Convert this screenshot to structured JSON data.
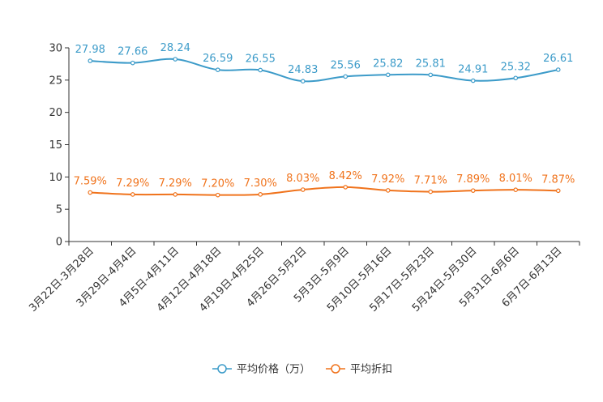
{
  "chart_data": {
    "type": "line",
    "title": "",
    "xlabel": "",
    "ylabel": "",
    "ylim": [
      0,
      30
    ],
    "yticks": [
      0,
      5,
      10,
      15,
      20,
      25,
      30
    ],
    "grid": false,
    "legend_position": "bottom-center",
    "categories": [
      "3月22日-3月28日",
      "3月29日-4月4日",
      "4月5日-4月11日",
      "4月12日-4月18日",
      "4月19日-4月25日",
      "4月26日-5月2日",
      "5月3日-5月9日",
      "5月10日-5月16日",
      "5月17日-5月23日",
      "5月24日-5月30日",
      "5月31日-6月6日",
      "6月7日-6月13日"
    ],
    "series": [
      {
        "name": "平均价格（万）",
        "color": "#3c9bc9",
        "values": [
          27.98,
          27.66,
          28.24,
          26.59,
          26.55,
          24.83,
          25.56,
          25.82,
          25.81,
          24.91,
          25.32,
          26.61
        ],
        "labels": [
          "27.98",
          "27.66",
          "28.24",
          "26.59",
          "26.55",
          "24.83",
          "25.56",
          "25.82",
          "25.81",
          "24.91",
          "25.32",
          "26.61"
        ]
      },
      {
        "name": "平均折扣",
        "color": "#f0731c",
        "values": [
          7.59,
          7.29,
          7.29,
          7.2,
          7.3,
          8.03,
          8.42,
          7.92,
          7.71,
          7.89,
          8.01,
          7.87
        ],
        "labels": [
          "7.59%",
          "7.29%",
          "7.29%",
          "7.20%",
          "7.30%",
          "8.03%",
          "8.42%",
          "7.92%",
          "7.71%",
          "7.89%",
          "8.01%",
          "7.87%"
        ]
      }
    ]
  }
}
